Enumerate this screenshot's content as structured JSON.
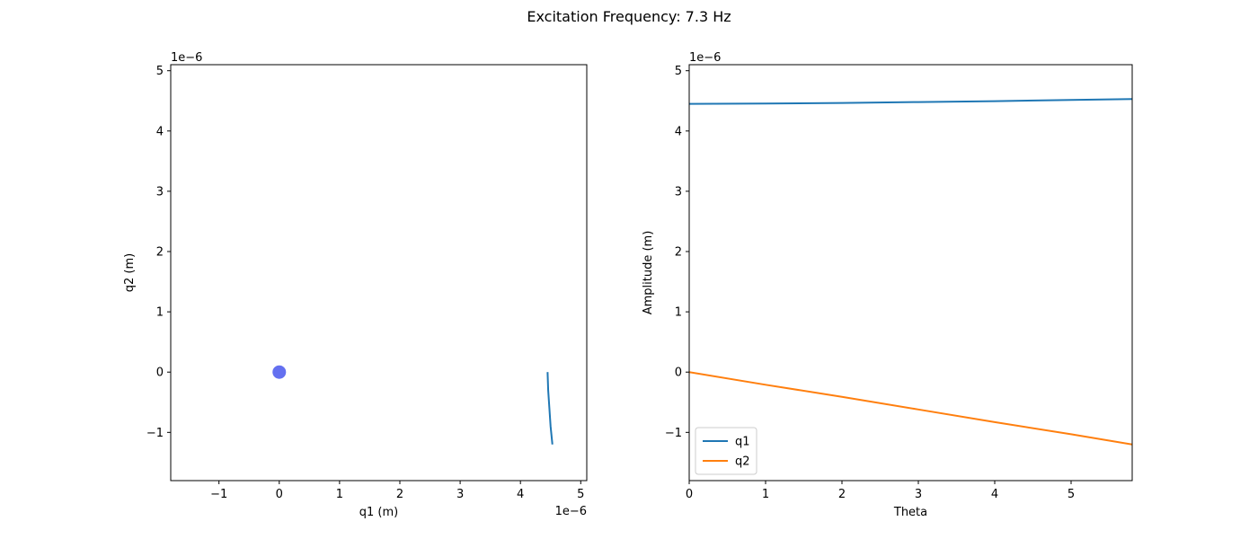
{
  "figure": {
    "title": "Excitation Frequency: 7.3 Hz"
  },
  "chart_data": [
    {
      "type": "line",
      "xlabel": "q1 (m)",
      "ylabel": "q2 (m)",
      "x_offset_text": "1e−6",
      "y_offset_text": "1e−6",
      "scale": 1e-06,
      "xlim": [
        -1.8,
        5.1
      ],
      "ylim": [
        -1.8,
        5.1
      ],
      "xticks": [
        -1,
        0,
        1,
        2,
        3,
        4,
        5
      ],
      "yticks": [
        -1,
        0,
        1,
        2,
        3,
        4,
        5
      ],
      "xtick_labels": [
        "−1",
        "0",
        "1",
        "2",
        "3",
        "4",
        "5"
      ],
      "ytick_labels": [
        "−1",
        "0",
        "1",
        "2",
        "3",
        "4",
        "5"
      ],
      "series": [
        {
          "color": "#1f77b4",
          "x": [
            4.45,
            4.46,
            4.48,
            4.5,
            4.53
          ],
          "y": [
            0.0,
            -0.3,
            -0.6,
            -0.9,
            -1.2
          ]
        }
      ],
      "markers": [
        {
          "x": 0,
          "y": 0,
          "color": "#6470f0"
        }
      ]
    },
    {
      "type": "line",
      "xlabel": "Theta",
      "ylabel": "Amplitude (m)",
      "y_offset_text": "1e−6",
      "scale": 1e-06,
      "xlim": [
        0,
        5.8
      ],
      "ylim": [
        -1.8,
        5.1
      ],
      "xticks": [
        0,
        1,
        2,
        3,
        4,
        5
      ],
      "yticks": [
        -1,
        0,
        1,
        2,
        3,
        4,
        5
      ],
      "xtick_labels": [
        "0",
        "1",
        "2",
        "3",
        "4",
        "5"
      ],
      "ytick_labels": [
        "−1",
        "0",
        "1",
        "2",
        "3",
        "4",
        "5"
      ],
      "legend": "lower-left",
      "series": [
        {
          "name": "q1",
          "color": "#1f77b4",
          "x": [
            0,
            1,
            2,
            3,
            4,
            5,
            5.8
          ],
          "y": [
            4.45,
            4.455,
            4.465,
            4.48,
            4.495,
            4.515,
            4.53
          ]
        },
        {
          "name": "q2",
          "color": "#ff7f0e",
          "x": [
            0,
            1,
            2,
            3,
            4,
            5,
            5.8
          ],
          "y": [
            0.0,
            -0.21,
            -0.41,
            -0.62,
            -0.83,
            -1.03,
            -1.2
          ]
        }
      ]
    }
  ]
}
